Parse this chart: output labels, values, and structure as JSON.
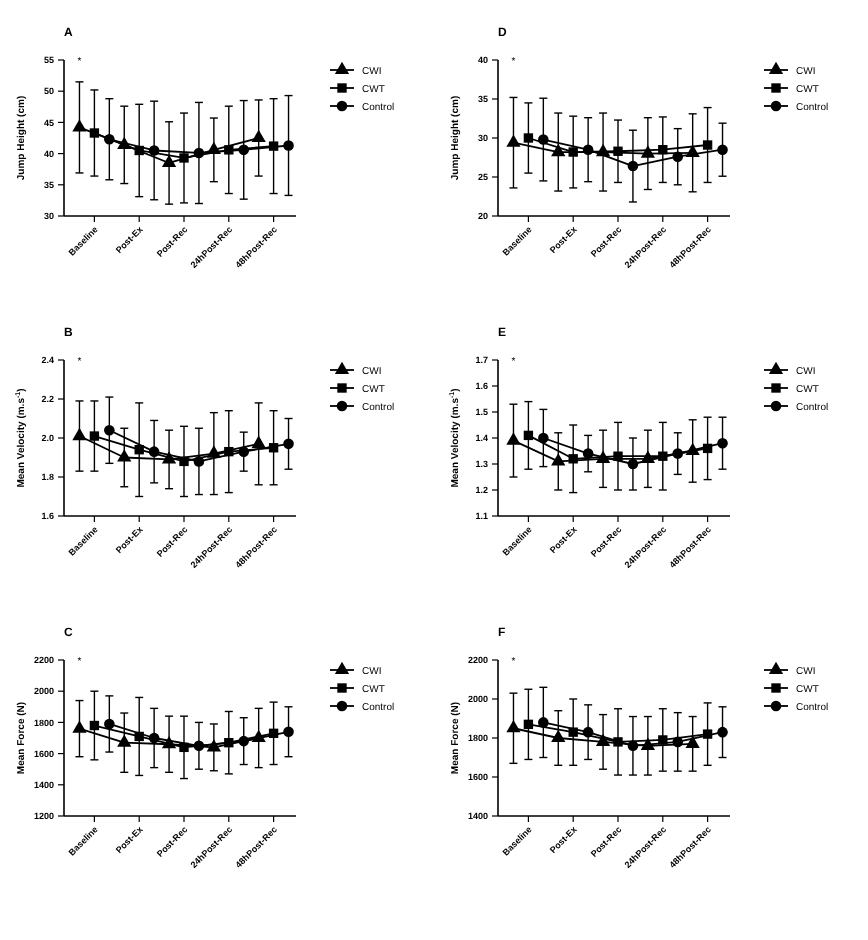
{
  "chart_data": [
    {
      "type": "line",
      "title": "A",
      "ylabel": "Jump Height (cm)",
      "categories": [
        null,
        "Baseline",
        null,
        null,
        "Post-Ex",
        null,
        null,
        "Post-Rec",
        null,
        null,
        "24hPost-Rec",
        null,
        null,
        "48hPost-Rec",
        null
      ],
      "ylim": [
        30,
        55
      ],
      "yticks": [
        30,
        35,
        40,
        45,
        50,
        55
      ],
      "legend": "right",
      "annotations": [
        "*"
      ],
      "series": [
        {
          "name": "CWI",
          "color": "#000000",
          "marker": "triangle",
          "values": [
            44.2,
            null,
            null,
            41.4,
            null,
            null,
            38.5,
            null,
            null,
            40.6,
            null,
            null,
            42.5,
            null,
            null
          ],
          "errors": [
            7.3,
            null,
            null,
            6.2,
            null,
            null,
            6.6,
            null,
            null,
            5.1,
            null,
            null,
            6.1,
            null,
            null
          ]
        },
        {
          "name": "CWT",
          "color": "#000000",
          "marker": "square",
          "values": [
            null,
            43.3,
            null,
            null,
            40.5,
            null,
            null,
            39.3,
            null,
            null,
            40.6,
            null,
            null,
            41.2,
            null
          ],
          "errors": [
            null,
            6.9,
            null,
            null,
            7.4,
            null,
            null,
            7.2,
            null,
            null,
            7.0,
            null,
            null,
            7.6,
            null
          ]
        },
        {
          "name": "Control",
          "color": "#000000",
          "marker": "circle",
          "values": [
            null,
            null,
            42.3,
            null,
            null,
            40.5,
            null,
            null,
            40.1,
            null,
            null,
            40.6,
            null,
            null,
            41.3
          ],
          "errors": [
            null,
            null,
            6.5,
            null,
            null,
            7.9,
            null,
            null,
            8.1,
            null,
            null,
            7.9,
            null,
            null,
            8.0
          ]
        }
      ]
    },
    {
      "type": "line",
      "title": "D",
      "ylabel": "Jump Height (cm)",
      "categories": [
        null,
        "Baseline",
        null,
        null,
        "Post-Ex",
        null,
        null,
        "Post-Rec",
        null,
        null,
        "24hPost-Rec",
        null,
        null,
        "48hPost-Rec",
        null
      ],
      "ylim": [
        20,
        40
      ],
      "yticks": [
        20,
        25,
        30,
        35,
        40
      ],
      "legend": "right",
      "annotations": [
        "*"
      ],
      "series": [
        {
          "name": "CWI",
          "color": "#000000",
          "marker": "triangle",
          "values": [
            29.4,
            null,
            null,
            28.2,
            null,
            null,
            28.2,
            null,
            null,
            28.0,
            null,
            null,
            28.1,
            null,
            null
          ],
          "errors": [
            5.8,
            null,
            null,
            5.0,
            null,
            null,
            5.0,
            null,
            null,
            4.6,
            null,
            null,
            5.0,
            null,
            null
          ]
        },
        {
          "name": "CWT",
          "color": "#000000",
          "marker": "square",
          "values": [
            null,
            30.0,
            null,
            null,
            28.2,
            null,
            null,
            28.3,
            null,
            null,
            28.5,
            null,
            null,
            29.1,
            null
          ],
          "errors": [
            null,
            4.5,
            null,
            null,
            4.6,
            null,
            null,
            4.0,
            null,
            null,
            4.2,
            null,
            null,
            4.8,
            null
          ]
        },
        {
          "name": "Control",
          "color": "#000000",
          "marker": "circle",
          "values": [
            null,
            null,
            29.8,
            null,
            null,
            28.5,
            null,
            null,
            26.4,
            null,
            null,
            27.6,
            null,
            null,
            28.5
          ],
          "errors": [
            null,
            null,
            5.3,
            null,
            null,
            4.1,
            null,
            null,
            4.6,
            null,
            null,
            3.6,
            null,
            null,
            3.4
          ]
        }
      ]
    },
    {
      "type": "line",
      "title": "B",
      "ylabel": "Mean Velocity (m.s$^{-1}$)",
      "categories": [
        null,
        "Baseline",
        null,
        null,
        "Post-Ex",
        null,
        null,
        "Post-Rec",
        null,
        null,
        "24hPost-Rec",
        null,
        null,
        "48hPost-Rec",
        null
      ],
      "ylim": [
        1.6,
        2.4
      ],
      "yticks": [
        {
          "value": 1.6,
          "label": "1.6"
        },
        {
          "value": 1.8,
          "label": "1.8"
        },
        {
          "value": 2.0,
          "label": "2.0"
        },
        {
          "value": 2.2,
          "label": "2.2"
        },
        {
          "value": 2.4,
          "label": "2.4"
        }
      ],
      "legend": "right",
      "annotations": [
        "*"
      ],
      "series": [
        {
          "name": "CWI",
          "color": "#000000",
          "marker": "triangle",
          "values": [
            2.01,
            null,
            null,
            1.9,
            null,
            null,
            1.89,
            null,
            null,
            1.92,
            null,
            null,
            1.97,
            null,
            null
          ],
          "errors": [
            0.18,
            null,
            null,
            0.15,
            null,
            null,
            0.15,
            null,
            null,
            0.21,
            null,
            null,
            0.21,
            null,
            null
          ]
        },
        {
          "name": "CWT",
          "color": "#000000",
          "marker": "square",
          "values": [
            null,
            2.01,
            null,
            null,
            1.94,
            null,
            null,
            1.88,
            null,
            null,
            1.93,
            null,
            null,
            1.95,
            null
          ],
          "errors": [
            null,
            0.18,
            null,
            null,
            0.24,
            null,
            null,
            0.18,
            null,
            null,
            0.21,
            null,
            null,
            0.19,
            null
          ]
        },
        {
          "name": "Control",
          "color": "#000000",
          "marker": "circle",
          "values": [
            null,
            null,
            2.04,
            null,
            null,
            1.93,
            null,
            null,
            1.88,
            null,
            null,
            1.93,
            null,
            null,
            1.97
          ],
          "errors": [
            null,
            null,
            0.17,
            null,
            null,
            0.16,
            null,
            null,
            0.17,
            null,
            null,
            0.1,
            null,
            null,
            0.13
          ]
        }
      ]
    },
    {
      "type": "line",
      "title": "E",
      "ylabel": "Mean Velocity (m.s$^{-1}$)",
      "categories": [
        null,
        "Baseline",
        null,
        null,
        "Post-Ex",
        null,
        null,
        "Post-Rec",
        null,
        null,
        "24hPost-Rec",
        null,
        null,
        "48hPost-Rec",
        null
      ],
      "ylim": [
        1.1,
        1.7
      ],
      "yticks": [
        1.1,
        1.2,
        1.3,
        1.4,
        1.5,
        1.6,
        1.7
      ],
      "legend": "right",
      "annotations": [
        "*"
      ],
      "series": [
        {
          "name": "CWI",
          "color": "#000000",
          "marker": "triangle",
          "values": [
            1.39,
            null,
            null,
            1.31,
            null,
            null,
            1.32,
            null,
            null,
            1.32,
            null,
            null,
            1.35,
            null,
            null
          ],
          "errors": [
            0.14,
            null,
            null,
            0.11,
            null,
            null,
            0.11,
            null,
            null,
            0.11,
            null,
            null,
            0.12,
            null,
            null
          ]
        },
        {
          "name": "CWT",
          "color": "#000000",
          "marker": "square",
          "values": [
            null,
            1.41,
            null,
            null,
            1.32,
            null,
            null,
            1.33,
            null,
            null,
            1.33,
            null,
            null,
            1.36,
            null
          ],
          "errors": [
            null,
            0.13,
            null,
            null,
            0.13,
            null,
            null,
            0.13,
            null,
            null,
            0.13,
            null,
            null,
            0.12,
            null
          ]
        },
        {
          "name": "Control",
          "color": "#000000",
          "marker": "circle",
          "values": [
            null,
            null,
            1.4,
            null,
            null,
            1.34,
            null,
            null,
            1.3,
            null,
            null,
            1.34,
            null,
            null,
            1.38
          ],
          "errors": [
            null,
            null,
            0.11,
            null,
            null,
            0.07,
            null,
            null,
            0.1,
            null,
            null,
            0.08,
            null,
            null,
            0.1
          ]
        }
      ]
    },
    {
      "type": "line",
      "title": "C",
      "ylabel": "Mean Force (N)",
      "categories": [
        null,
        "Baseline",
        null,
        null,
        "Post-Ex",
        null,
        null,
        "Post-Rec",
        null,
        null,
        "24hPost-Rec",
        null,
        null,
        "48hPost-Rec",
        null
      ],
      "ylim": [
        1200,
        2200
      ],
      "yticks": [
        1200,
        1400,
        1600,
        1800,
        2000,
        2200
      ],
      "legend": "right",
      "annotations": [
        "*"
      ],
      "series": [
        {
          "name": "CWI",
          "color": "#000000",
          "marker": "triangle",
          "values": [
            1760,
            null,
            null,
            1670,
            null,
            null,
            1660,
            null,
            null,
            1640,
            null,
            null,
            1700,
            null,
            null
          ],
          "errors": [
            180,
            null,
            null,
            190,
            null,
            null,
            180,
            null,
            null,
            150,
            null,
            null,
            190,
            null,
            null
          ]
        },
        {
          "name": "CWT",
          "color": "#000000",
          "marker": "square",
          "values": [
            null,
            1780,
            null,
            null,
            1710,
            null,
            null,
            1640,
            null,
            null,
            1670,
            null,
            null,
            1730,
            null
          ],
          "errors": [
            null,
            220,
            null,
            null,
            250,
            null,
            null,
            200,
            null,
            null,
            200,
            null,
            null,
            200,
            null
          ]
        },
        {
          "name": "Control",
          "color": "#000000",
          "marker": "circle",
          "values": [
            null,
            null,
            1790,
            null,
            null,
            1700,
            null,
            null,
            1650,
            null,
            null,
            1680,
            null,
            null,
            1740
          ],
          "errors": [
            null,
            null,
            180,
            null,
            null,
            190,
            null,
            null,
            150,
            null,
            null,
            150,
            null,
            null,
            160
          ]
        }
      ]
    },
    {
      "type": "line",
      "title": "F",
      "ylabel": "Mean Force (N)",
      "categories": [
        null,
        "Baseline",
        null,
        null,
        "Post-Ex",
        null,
        null,
        "Post-Rec",
        null,
        null,
        "24hPost-Rec",
        null,
        null,
        "48hPost-Rec",
        null
      ],
      "ylim": [
        1400,
        2200
      ],
      "yticks": [
        1400,
        1600,
        1800,
        2000,
        2200
      ],
      "legend": "right",
      "annotations": [
        "*"
      ],
      "series": [
        {
          "name": "CWI",
          "color": "#000000",
          "marker": "triangle",
          "values": [
            1850,
            null,
            null,
            1800,
            null,
            null,
            1780,
            null,
            null,
            1760,
            null,
            null,
            1770,
            null,
            null
          ],
          "errors": [
            180,
            null,
            null,
            140,
            null,
            null,
            140,
            null,
            null,
            150,
            null,
            null,
            140,
            null,
            null
          ]
        },
        {
          "name": "CWT",
          "color": "#000000",
          "marker": "square",
          "values": [
            null,
            1870,
            null,
            null,
            1830,
            null,
            null,
            1780,
            null,
            null,
            1790,
            null,
            null,
            1820,
            null
          ],
          "errors": [
            null,
            180,
            null,
            null,
            170,
            null,
            null,
            170,
            null,
            null,
            160,
            null,
            null,
            160,
            null
          ]
        },
        {
          "name": "Control",
          "color": "#000000",
          "marker": "circle",
          "values": [
            null,
            null,
            1880,
            null,
            null,
            1830,
            null,
            null,
            1760,
            null,
            null,
            1780,
            null,
            null,
            1830
          ],
          "errors": [
            null,
            null,
            180,
            null,
            null,
            140,
            null,
            null,
            150,
            null,
            null,
            150,
            null,
            null,
            130
          ]
        }
      ]
    }
  ]
}
